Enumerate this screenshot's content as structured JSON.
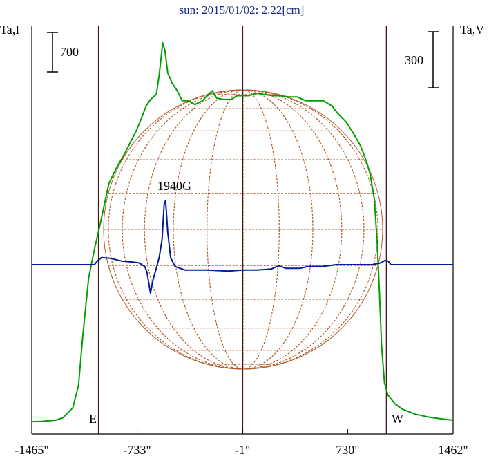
{
  "chart_data": {
    "type": "line",
    "title": "sun: 2015/01/02: 2.22[cm]",
    "left_axis_label": "Ta,I",
    "right_axis_label": "Ta,V",
    "x_ticks": [
      "-1465\"",
      "-733\"",
      "-1\"",
      "730\"",
      "1462\""
    ],
    "x_tick_values": [
      -1465,
      -733,
      -1,
      730,
      1462
    ],
    "xlim": [
      -1465,
      1462
    ],
    "scale_bar_left": "700",
    "scale_bar_right": "300",
    "limb_markers": {
      "east": "E",
      "west": "W",
      "east_x": -1000,
      "west_x": 1000
    },
    "annotation": {
      "text": "1940G",
      "x": -470
    },
    "colors": {
      "intensity": "#00a000",
      "polarization": "#001a99",
      "disk_grid": "#b05a2a",
      "marker_lines": "#4a1414",
      "axis_frame": "#000000",
      "title": "#1a2a88"
    },
    "series": [
      {
        "key": "intensity",
        "points": [
          [
            -1465,
            10
          ],
          [
            -1400,
            12
          ],
          [
            -1300,
            22
          ],
          [
            -1250,
            40
          ],
          [
            -1180,
            120
          ],
          [
            -1140,
            300
          ],
          [
            -1110,
            700
          ],
          [
            -1070,
            1150
          ],
          [
            -1030,
            1380
          ],
          [
            -990,
            1580
          ],
          [
            -930,
            1900
          ],
          [
            -880,
            2020
          ],
          [
            -820,
            2140
          ],
          [
            -740,
            2320
          ],
          [
            -710,
            2400
          ],
          [
            -670,
            2520
          ],
          [
            -640,
            2570
          ],
          [
            -600,
            2610
          ],
          [
            -580,
            2760
          ],
          [
            -555,
            3020
          ],
          [
            -540,
            2960
          ],
          [
            -520,
            2780
          ],
          [
            -490,
            2700
          ],
          [
            -455,
            2640
          ],
          [
            -420,
            2560
          ],
          [
            -380,
            2560
          ],
          [
            -330,
            2530
          ],
          [
            -280,
            2560
          ],
          [
            -240,
            2610
          ],
          [
            -210,
            2640
          ],
          [
            -180,
            2580
          ],
          [
            -130,
            2570
          ],
          [
            -80,
            2570
          ],
          [
            -40,
            2600
          ],
          [
            0,
            2600
          ],
          [
            40,
            2600
          ],
          [
            100,
            2620
          ],
          [
            150,
            2610
          ],
          [
            210,
            2600
          ],
          [
            260,
            2600
          ],
          [
            320,
            2590
          ],
          [
            380,
            2590
          ],
          [
            440,
            2560
          ],
          [
            500,
            2560
          ],
          [
            560,
            2560
          ],
          [
            620,
            2520
          ],
          [
            660,
            2460
          ],
          [
            720,
            2390
          ],
          [
            770,
            2300
          ],
          [
            820,
            2200
          ],
          [
            860,
            2080
          ],
          [
            885,
            1980
          ],
          [
            915,
            1780
          ],
          [
            935,
            1420
          ],
          [
            950,
            1050
          ],
          [
            965,
            620
          ],
          [
            985,
            320
          ],
          [
            1010,
            220
          ],
          [
            1060,
            150
          ],
          [
            1110,
            110
          ],
          [
            1200,
            70
          ],
          [
            1300,
            45
          ],
          [
            1400,
            30
          ],
          [
            1462,
            22
          ]
        ]
      },
      {
        "key": "polarization",
        "points": [
          [
            -1465,
            0
          ],
          [
            -1030,
            0
          ],
          [
            -1010,
            10
          ],
          [
            -980,
            20
          ],
          [
            -920,
            18
          ],
          [
            -840,
            10
          ],
          [
            -780,
            8
          ],
          [
            -720,
            5
          ],
          [
            -680,
            -5
          ],
          [
            -665,
            -20
          ],
          [
            -640,
            -80
          ],
          [
            -625,
            -45
          ],
          [
            -600,
            -10
          ],
          [
            -580,
            20
          ],
          [
            -560,
            70
          ],
          [
            -545,
            170
          ],
          [
            -535,
            180
          ],
          [
            -520,
            90
          ],
          [
            -500,
            20
          ],
          [
            -470,
            -5
          ],
          [
            -400,
            -15
          ],
          [
            -250,
            -15
          ],
          [
            -100,
            -18
          ],
          [
            0,
            -15
          ],
          [
            100,
            -15
          ],
          [
            200,
            -12
          ],
          [
            250,
            -3
          ],
          [
            300,
            -10
          ],
          [
            400,
            -10
          ],
          [
            450,
            -5
          ],
          [
            550,
            -5
          ],
          [
            650,
            0
          ],
          [
            750,
            0
          ],
          [
            900,
            0
          ],
          [
            960,
            5
          ],
          [
            990,
            12
          ],
          [
            1010,
            10
          ],
          [
            1030,
            0
          ],
          [
            1462,
            0
          ]
        ]
      }
    ],
    "grid": false,
    "legend": "none"
  }
}
